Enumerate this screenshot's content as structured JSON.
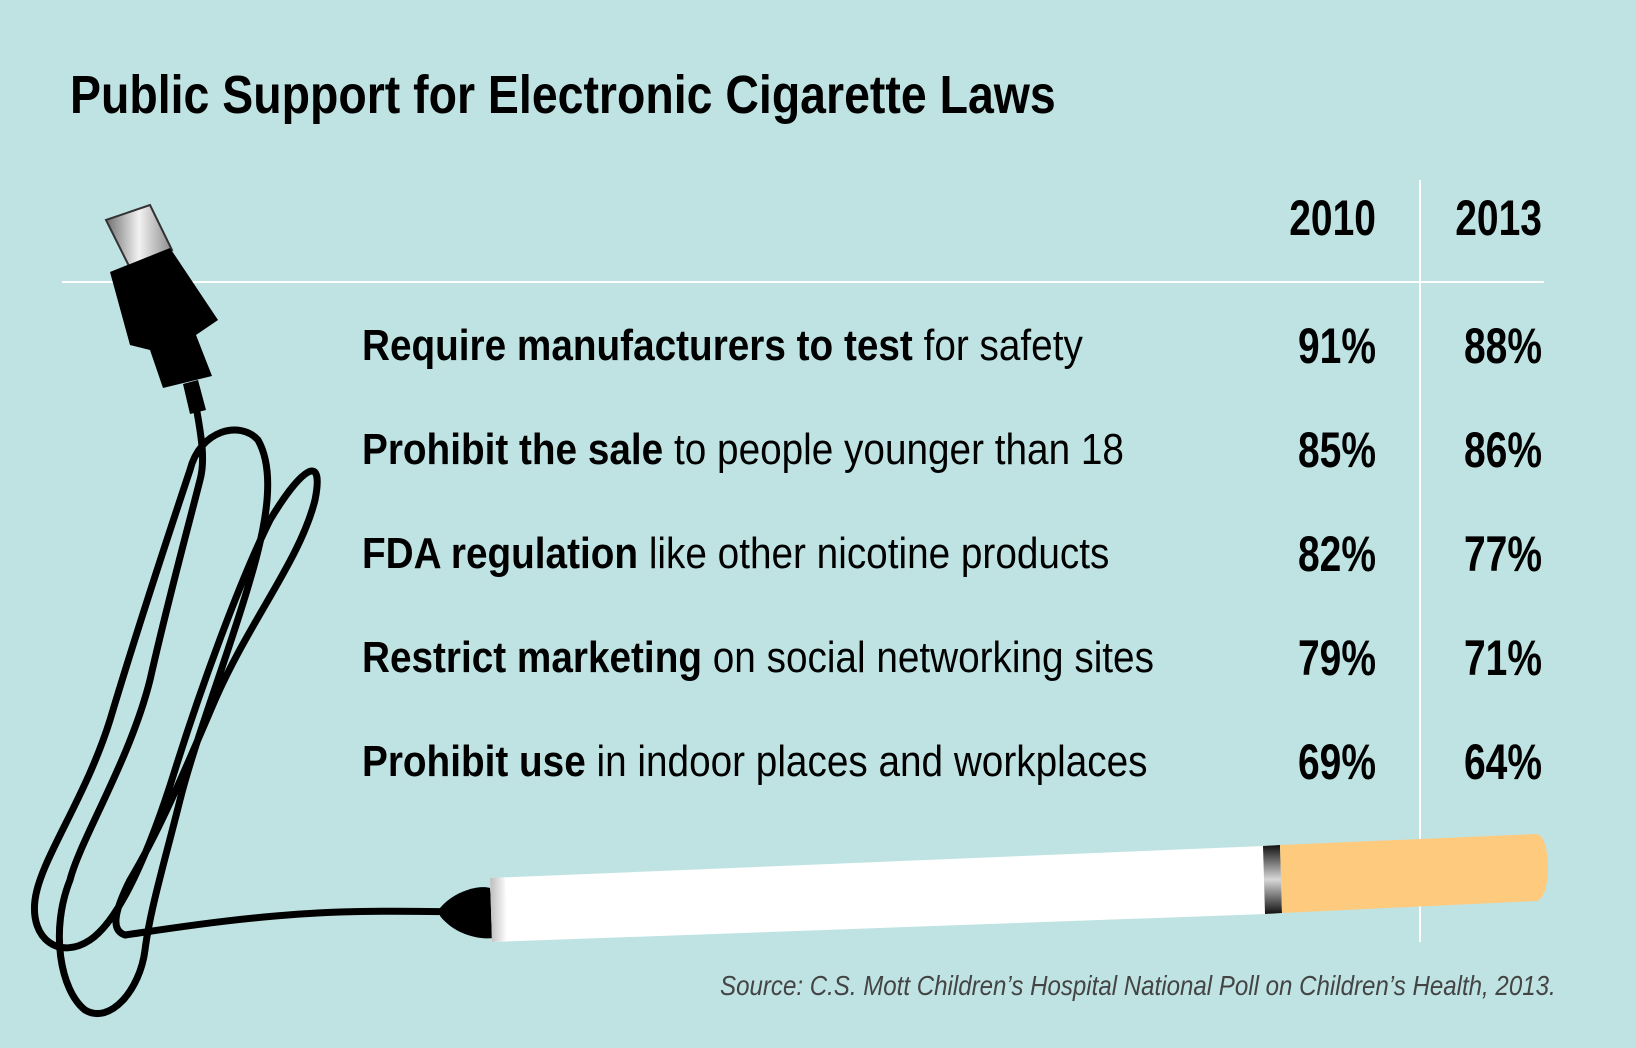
{
  "chart_data": {
    "type": "table",
    "title": "Public Support for Electronic Cigarette Laws",
    "columns": [
      "2010",
      "2013"
    ],
    "rows": [
      {
        "bold": "Require manufacturers to test",
        "rest": " for safety",
        "values": [
          "91%",
          "88%"
        ]
      },
      {
        "bold": "Prohibit the sale",
        "rest": " to people younger than 18",
        "values": [
          "85%",
          "86%"
        ]
      },
      {
        "bold": "FDA regulation",
        "rest": " like other nicotine products",
        "values": [
          "82%",
          "77%"
        ]
      },
      {
        "bold": "Restrict marketing",
        "rest": " on social networking sites",
        "values": [
          "79%",
          "71%"
        ]
      },
      {
        "bold": "Prohibit use",
        "rest": " in indoor places and workplaces",
        "values": [
          "69%",
          "64%"
        ]
      }
    ],
    "source": "Source: C.S. Mott Children’s Hospital National Poll on Children’s Health, 2013."
  },
  "colors": {
    "background": "#bfe3e3",
    "filter": "#fecb7e",
    "cigarette_body": "#ffffff",
    "cord": "#000000",
    "divider": "#ffffff"
  }
}
